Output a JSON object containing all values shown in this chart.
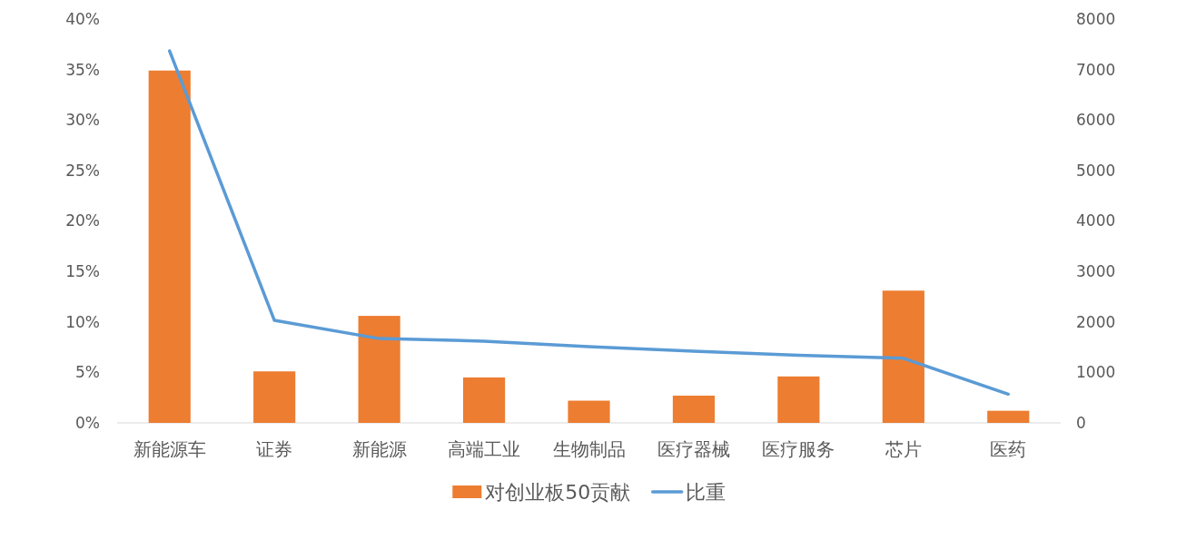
{
  "chart_data": {
    "type": "bar",
    "categories": [
      "新能源车",
      "证券",
      "新能源",
      "高端工业",
      "生物制品",
      "医疗器械",
      "医疗服务",
      "芯片",
      "医药"
    ],
    "series": [
      {
        "name": "对创业板50贡献",
        "color": "#ed7d31",
        "values": [
          34.9,
          5.1,
          10.6,
          4.5,
          2.2,
          2.7,
          4.6,
          13.1,
          1.2
        ]
      },
      {
        "name": "比重",
        "type": "line",
        "axis": "y2",
        "color": "#5b9bd5",
        "values": [
          7370,
          2030,
          1670,
          1620,
          1510,
          1420,
          1340,
          1280,
          570
        ]
      }
    ],
    "ylim": [
      0,
      40
    ],
    "yticks": [
      {
        "value": 0,
        "label": "0%"
      },
      {
        "value": 5,
        "label": "5%"
      },
      {
        "value": 10,
        "label": "10%"
      },
      {
        "value": 15,
        "label": "15%"
      },
      {
        "value": 20,
        "label": "20%"
      },
      {
        "value": 25,
        "label": "25%"
      },
      {
        "value": 30,
        "label": "30%"
      },
      {
        "value": 35,
        "label": "35%"
      },
      {
        "value": 40,
        "label": "40%"
      }
    ],
    "y2lim": [
      0,
      8000
    ],
    "y2ticks": [
      0,
      1000,
      2000,
      3000,
      4000,
      5000,
      6000,
      7000,
      8000
    ],
    "legend": "bottom"
  }
}
